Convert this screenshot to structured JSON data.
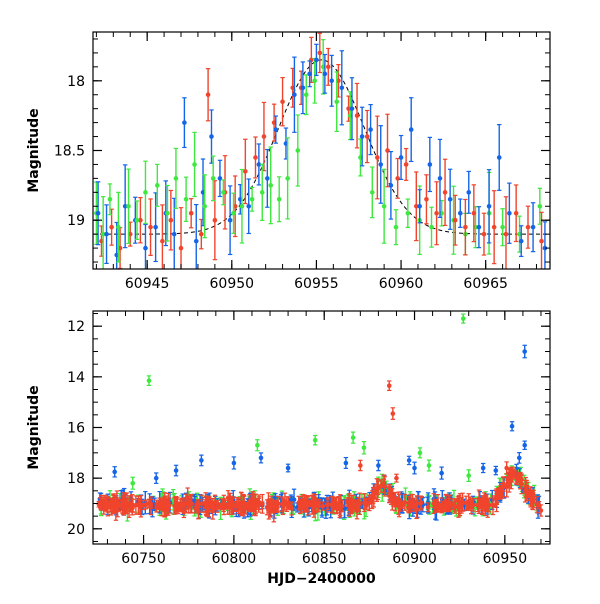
{
  "chart_data": [
    {
      "type": "scatter",
      "panel": "top",
      "xlabel": "",
      "ylabel": "Magnitude",
      "xlim": [
        60941.8,
        60968.8
      ],
      "ylim": [
        19.35,
        17.65
      ],
      "y_inverted": true,
      "x_ticks": [
        60945,
        60950,
        60955,
        60960,
        60965
      ],
      "x_tick_labels": [
        "60945",
        "60950",
        "60955",
        "60960",
        "60965"
      ],
      "y_ticks": [
        18,
        18.5,
        19
      ],
      "y_tick_labels": [
        "18",
        "18.5",
        "19"
      ],
      "model_curve": {
        "name": "model fit",
        "style": "dashed",
        "peak_x": 60955.3,
        "peak_mag": 17.85,
        "baseline_mag": 19.1,
        "width_days": 3.6
      },
      "series": [
        {
          "name": "green",
          "color": "#3ee83e",
          "points": [
            [
              60942.0,
              18.95
            ],
            [
              60942.4,
              19.1
            ],
            [
              60942.8,
              18.85
            ],
            [
              60943.3,
              19.05
            ],
            [
              60943.9,
              18.9
            ],
            [
              60944.4,
              19.0
            ],
            [
              60944.9,
              18.8
            ],
            [
              60945.6,
              18.75
            ],
            [
              60946.2,
              18.95
            ],
            [
              60946.7,
              18.7
            ],
            [
              60947.3,
              18.85
            ],
            [
              60947.8,
              18.6
            ],
            [
              60948.4,
              18.9
            ],
            [
              60948.9,
              18.7
            ],
            [
              60949.5,
              18.8
            ],
            [
              60950.1,
              18.95
            ],
            [
              60950.6,
              18.9
            ],
            [
              60951.2,
              18.85
            ],
            [
              60951.8,
              18.8
            ],
            [
              60952.3,
              18.75
            ],
            [
              60952.8,
              18.85
            ],
            [
              60953.3,
              18.7
            ],
            [
              60953.9,
              18.5
            ],
            [
              60954.4,
              18.1
            ],
            [
              60954.9,
              18.0
            ],
            [
              60955.4,
              17.9
            ],
            [
              60956.2,
              18.15
            ],
            [
              60957.0,
              18.25
            ],
            [
              60957.6,
              18.55
            ],
            [
              60958.3,
              18.8
            ],
            [
              60959.0,
              18.9
            ],
            [
              60959.7,
              19.05
            ],
            [
              60960.4,
              18.95
            ],
            [
              60961.1,
              19.0
            ],
            [
              60961.8,
              19.05
            ],
            [
              60962.4,
              18.95
            ],
            [
              60963.1,
              19.0
            ],
            [
              60963.8,
              19.1
            ],
            [
              60964.4,
              19.05
            ],
            [
              60965.2,
              18.95
            ],
            [
              60966.0,
              19.05
            ],
            [
              60967.0,
              19.1
            ],
            [
              60968.2,
              18.9
            ]
          ]
        },
        {
          "name": "blue",
          "color": "#1565e8",
          "points": [
            [
              60942.1,
              18.95
            ],
            [
              60942.6,
              19.1
            ],
            [
              60943.2,
              19.25
            ],
            [
              60943.7,
              18.9
            ],
            [
              60944.3,
              19.0
            ],
            [
              60944.9,
              19.2
            ],
            [
              60945.5,
              19.05
            ],
            [
              60946.1,
              18.95
            ],
            [
              60946.6,
              19.1
            ],
            [
              60947.2,
              18.3
            ],
            [
              60947.9,
              19.15
            ],
            [
              60948.3,
              18.8
            ],
            [
              60948.8,
              18.4
            ],
            [
              60949.3,
              18.7
            ],
            [
              60949.9,
              19.0
            ],
            [
              60950.5,
              18.85
            ],
            [
              60951.0,
              18.9
            ],
            [
              60951.6,
              18.6
            ],
            [
              60952.1,
              18.7
            ],
            [
              60952.6,
              18.35
            ],
            [
              60953.2,
              18.45
            ],
            [
              60953.7,
              18.1
            ],
            [
              60954.2,
              18.05
            ],
            [
              60954.6,
              17.95
            ],
            [
              60955.0,
              17.85
            ],
            [
              60955.5,
              17.95
            ],
            [
              60955.9,
              18.0
            ],
            [
              60956.5,
              18.05
            ],
            [
              60957.1,
              18.2
            ],
            [
              60957.7,
              18.4
            ],
            [
              60958.2,
              18.35
            ],
            [
              60958.8,
              18.6
            ],
            [
              60959.4,
              18.75
            ],
            [
              60960.0,
              18.55
            ],
            [
              60960.6,
              18.35
            ],
            [
              60961.1,
              18.9
            ],
            [
              60961.7,
              18.6
            ],
            [
              60962.3,
              18.7
            ],
            [
              60962.9,
              18.85
            ],
            [
              60963.5,
              18.95
            ],
            [
              60964.0,
              18.8
            ],
            [
              60964.6,
              19.05
            ],
            [
              60965.2,
              18.9
            ],
            [
              60965.8,
              18.55
            ],
            [
              60966.4,
              18.95
            ],
            [
              60967.1,
              19.15
            ],
            [
              60967.8,
              19.05
            ],
            [
              60968.5,
              19.2
            ]
          ]
        },
        {
          "name": "red",
          "color": "#f0442c",
          "points": [
            [
              60942.3,
              19.15
            ],
            [
              60942.9,
              19.05
            ],
            [
              60943.4,
              19.2
            ],
            [
              60944.0,
              19.1
            ],
            [
              60944.6,
              19.0
            ],
            [
              60945.2,
              19.05
            ],
            [
              60945.9,
              19.15
            ],
            [
              60946.4,
              19.0
            ],
            [
              60947.0,
              19.2
            ],
            [
              60947.6,
              18.95
            ],
            [
              60948.2,
              19.1
            ],
            [
              60948.6,
              18.1
            ],
            [
              60949.0,
              19.0
            ],
            [
              60949.6,
              18.8
            ],
            [
              60950.2,
              18.9
            ],
            [
              60950.8,
              18.65
            ],
            [
              60951.4,
              18.55
            ],
            [
              60951.9,
              18.4
            ],
            [
              60952.5,
              18.3
            ],
            [
              60953.0,
              18.15
            ],
            [
              60953.6,
              18.05
            ],
            [
              60954.1,
              18.05
            ],
            [
              60954.7,
              17.85
            ],
            [
              60955.2,
              17.8
            ],
            [
              60955.7,
              17.9
            ],
            [
              60956.3,
              18.0
            ],
            [
              60956.9,
              18.2
            ],
            [
              60957.4,
              18.25
            ],
            [
              60958.0,
              18.4
            ],
            [
              60958.6,
              18.55
            ],
            [
              60959.2,
              18.5
            ],
            [
              60959.8,
              18.7
            ],
            [
              60960.3,
              18.6
            ],
            [
              60960.9,
              18.9
            ],
            [
              60961.5,
              18.85
            ],
            [
              60962.1,
              18.95
            ],
            [
              60962.6,
              18.8
            ],
            [
              60963.2,
              19.0
            ],
            [
              60963.8,
              19.05
            ],
            [
              60964.3,
              18.95
            ],
            [
              60964.9,
              19.1
            ],
            [
              60965.5,
              19.05
            ],
            [
              60966.2,
              19.1
            ],
            [
              60966.8,
              18.95
            ],
            [
              60967.5,
              19.05
            ],
            [
              60968.3,
              19.15
            ]
          ]
        }
      ]
    },
    {
      "type": "scatter",
      "panel": "bottom",
      "xlabel": "HJD−2400000",
      "ylabel": "Magnitude",
      "xlim": [
        60722,
        60975
      ],
      "ylim": [
        20.6,
        11.4
      ],
      "y_inverted": true,
      "x_ticks": [
        60750,
        60800,
        60850,
        60900,
        60950
      ],
      "x_tick_labels": [
        "60750",
        "60800",
        "60850",
        "60900",
        "60950"
      ],
      "y_ticks": [
        12,
        14,
        16,
        18,
        20
      ],
      "y_tick_labels": [
        "12",
        "14",
        "16",
        "18",
        "20"
      ],
      "baseline": {
        "x_start": 60725,
        "x_end": 60970,
        "level_mag": 19.05,
        "scatter_mag": 0.45,
        "points_per_series": 180
      },
      "series": [
        {
          "name": "green",
          "color": "#3ee83e",
          "outliers": [
            [
              60753,
              14.15
            ],
            [
              60927,
              11.7
            ],
            [
              60813,
              16.7
            ],
            [
              60845,
              16.5
            ],
            [
              60866,
              16.4
            ],
            [
              60872,
              16.8
            ],
            [
              60903,
              17.0
            ],
            [
              60908,
              17.5
            ],
            [
              60930,
              17.9
            ],
            [
              60744,
              18.2
            ]
          ]
        },
        {
          "name": "blue",
          "color": "#1565e8",
          "outliers": [
            [
              60961,
              13.0
            ],
            [
              60954,
              15.95
            ],
            [
              60961,
              16.7
            ],
            [
              60958,
              17.2
            ],
            [
              60734,
              17.75
            ],
            [
              60757,
              18.0
            ],
            [
              60768,
              17.7
            ],
            [
              60782,
              17.3
            ],
            [
              60800,
              17.4
            ],
            [
              60815,
              17.2
            ],
            [
              60830,
              17.6
            ],
            [
              60862,
              17.4
            ],
            [
              60880,
              17.5
            ],
            [
              60897,
              17.3
            ],
            [
              60900,
              17.6
            ],
            [
              60915,
              17.8
            ],
            [
              60938,
              17.6
            ],
            [
              60945,
              17.7
            ]
          ]
        },
        {
          "name": "red",
          "color": "#f0442c",
          "outliers": [
            [
              60886,
              14.35
            ],
            [
              60888,
              15.45
            ],
            [
              60951,
              17.6
            ],
            [
              60955,
              17.8
            ],
            [
              60870,
              17.5
            ],
            [
              60890,
              18.0
            ]
          ]
        }
      ],
      "features": [
        {
          "name": "red-green hump",
          "x_center": 60882,
          "width_days": 6,
          "peak_mag": 18.3
        },
        {
          "name": "final outburst",
          "x_center": 60955,
          "width_days": 8,
          "peak_mag": 17.9
        }
      ]
    }
  ]
}
